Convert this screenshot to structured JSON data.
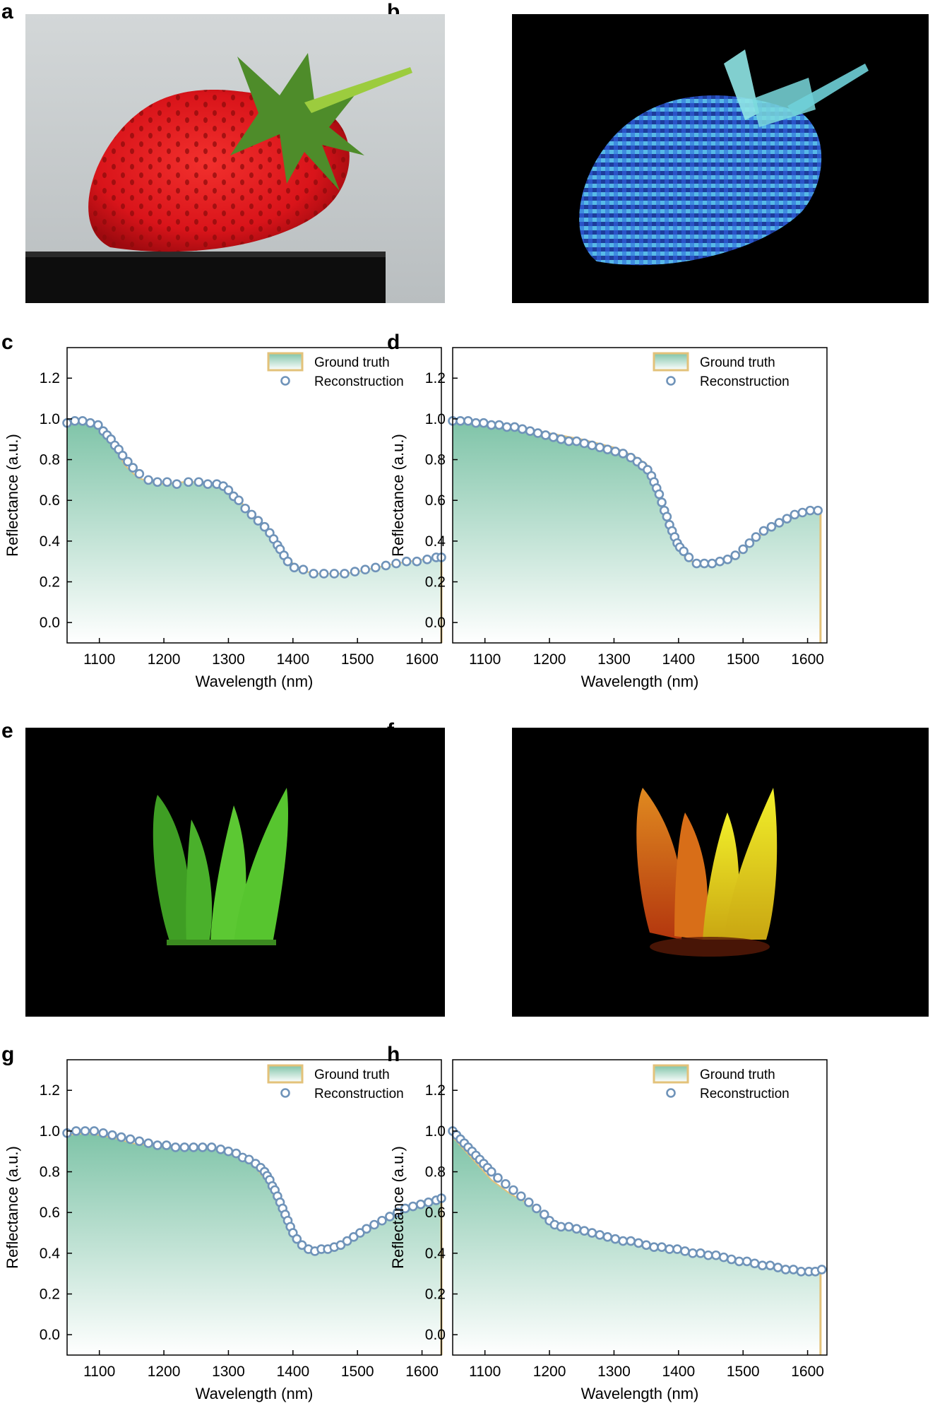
{
  "panels": {
    "a": "a",
    "b": "b",
    "c": "c",
    "d": "d",
    "e": "e",
    "f": "f",
    "g": "g",
    "h": "h"
  },
  "colors": {
    "ground_truth_line": "#e3c27a",
    "fill_top": "#7fc4a8",
    "fill_bottom": "#ffffff",
    "reconstruction_marker": "#6f93b9",
    "photo_background_a": "#c9cdcf",
    "photo_background_dark": "#000000"
  },
  "chart_data": [
    {
      "panel": "c",
      "type": "line",
      "xlabel": "Wavelength (nm)",
      "ylabel": "Reflectance (a.u.)",
      "xlim": [
        1050,
        1630
      ],
      "ylim": [
        -0.1,
        1.35
      ],
      "xticks": [
        1100,
        1200,
        1300,
        1400,
        1500,
        1600
      ],
      "yticks": [
        0.0,
        0.2,
        0.4,
        0.6,
        0.8,
        1.0,
        1.2
      ],
      "xtick_labels": [
        "1100",
        "1200",
        "1300",
        "1400",
        "1500",
        "1600"
      ],
      "ytick_labels": [
        "0.0",
        "0.2",
        "0.4",
        "0.6",
        "0.8",
        "1.0",
        "1.2"
      ],
      "legend": [
        "Ground truth",
        "Reconstruction"
      ],
      "legend_position": "top-right",
      "series": [
        {
          "name": "Ground truth",
          "style": "area",
          "x": [
            1050,
            1060,
            1080,
            1100,
            1120,
            1140,
            1160,
            1180,
            1200,
            1230,
            1260,
            1290,
            1300,
            1320,
            1340,
            1360,
            1380,
            1400,
            1420,
            1440,
            1460,
            1480,
            1500,
            1530,
            1560,
            1600,
            1630
          ],
          "y": [
            0.98,
            0.99,
            0.98,
            0.96,
            0.88,
            0.77,
            0.71,
            0.69,
            0.68,
            0.69,
            0.69,
            0.68,
            0.65,
            0.59,
            0.52,
            0.46,
            0.37,
            0.29,
            0.25,
            0.24,
            0.24,
            0.24,
            0.25,
            0.27,
            0.29,
            0.31,
            0.32
          ]
        },
        {
          "name": "Reconstruction",
          "style": "markers",
          "x": [
            1050,
            1062,
            1074,
            1086,
            1098,
            1106,
            1112,
            1118,
            1124,
            1130,
            1136,
            1144,
            1152,
            1162,
            1176,
            1190,
            1205,
            1220,
            1238,
            1254,
            1268,
            1282,
            1292,
            1300,
            1308,
            1316,
            1326,
            1336,
            1346,
            1356,
            1364,
            1370,
            1376,
            1380,
            1386,
            1392,
            1402,
            1416,
            1432,
            1448,
            1464,
            1480,
            1496,
            1512,
            1528,
            1544,
            1560,
            1576,
            1592,
            1608,
            1622,
            1630
          ],
          "y": [
            0.98,
            0.99,
            0.99,
            0.98,
            0.97,
            0.94,
            0.92,
            0.9,
            0.87,
            0.85,
            0.82,
            0.79,
            0.76,
            0.73,
            0.7,
            0.69,
            0.69,
            0.68,
            0.69,
            0.69,
            0.68,
            0.68,
            0.67,
            0.65,
            0.62,
            0.6,
            0.56,
            0.53,
            0.5,
            0.47,
            0.44,
            0.41,
            0.38,
            0.36,
            0.33,
            0.3,
            0.27,
            0.26,
            0.24,
            0.24,
            0.24,
            0.24,
            0.25,
            0.26,
            0.27,
            0.28,
            0.29,
            0.3,
            0.3,
            0.31,
            0.32,
            0.32
          ]
        }
      ]
    },
    {
      "panel": "d",
      "type": "line",
      "xlabel": "Wavelength (nm)",
      "ylabel": "Reflectance (a.u.)",
      "xlim": [
        1050,
        1630
      ],
      "ylim": [
        -0.1,
        1.35
      ],
      "xticks": [
        1100,
        1200,
        1300,
        1400,
        1500,
        1600
      ],
      "yticks": [
        0.0,
        0.2,
        0.4,
        0.6,
        0.8,
        1.0,
        1.2
      ],
      "xtick_labels": [
        "1100",
        "1200",
        "1300",
        "1400",
        "1500",
        "1600"
      ],
      "ytick_labels": [
        "0.0",
        "0.2",
        "0.4",
        "0.6",
        "0.8",
        "1.0",
        "1.2"
      ],
      "legend": [
        "Ground truth",
        "Reconstruction"
      ],
      "legend_position": "top-right",
      "series": [
        {
          "name": "Ground truth",
          "style": "area",
          "x": [
            1050,
            1100,
            1150,
            1200,
            1250,
            1300,
            1330,
            1350,
            1360,
            1370,
            1380,
            1390,
            1400,
            1410,
            1420,
            1440,
            1460,
            1480,
            1500,
            1520,
            1540,
            1560,
            1580,
            1600,
            1620
          ],
          "y": [
            0.99,
            0.98,
            0.96,
            0.93,
            0.9,
            0.86,
            0.82,
            0.78,
            0.73,
            0.64,
            0.53,
            0.43,
            0.37,
            0.32,
            0.3,
            0.29,
            0.29,
            0.31,
            0.35,
            0.41,
            0.46,
            0.5,
            0.52,
            0.54,
            0.55
          ]
        },
        {
          "name": "Reconstruction",
          "style": "markers",
          "x": [
            1050,
            1062,
            1074,
            1086,
            1098,
            1110,
            1122,
            1134,
            1146,
            1158,
            1170,
            1182,
            1194,
            1206,
            1218,
            1230,
            1242,
            1254,
            1266,
            1278,
            1290,
            1302,
            1314,
            1326,
            1336,
            1344,
            1352,
            1358,
            1362,
            1366,
            1370,
            1374,
            1378,
            1382,
            1386,
            1390,
            1394,
            1398,
            1402,
            1408,
            1416,
            1428,
            1440,
            1452,
            1464,
            1476,
            1488,
            1500,
            1510,
            1520,
            1532,
            1544,
            1556,
            1568,
            1580,
            1592,
            1604,
            1616
          ],
          "y": [
            0.99,
            0.99,
            0.99,
            0.98,
            0.98,
            0.97,
            0.97,
            0.96,
            0.96,
            0.95,
            0.94,
            0.93,
            0.92,
            0.91,
            0.9,
            0.89,
            0.89,
            0.88,
            0.87,
            0.86,
            0.85,
            0.84,
            0.83,
            0.81,
            0.79,
            0.77,
            0.75,
            0.72,
            0.69,
            0.66,
            0.63,
            0.59,
            0.55,
            0.52,
            0.48,
            0.45,
            0.42,
            0.39,
            0.37,
            0.35,
            0.32,
            0.29,
            0.29,
            0.29,
            0.3,
            0.31,
            0.33,
            0.36,
            0.39,
            0.42,
            0.45,
            0.47,
            0.49,
            0.51,
            0.53,
            0.54,
            0.55,
            0.55
          ]
        }
      ]
    },
    {
      "panel": "g",
      "type": "line",
      "xlabel": "Wavelength (nm)",
      "ylabel": "Reflectance (a.u.)",
      "xlim": [
        1050,
        1630
      ],
      "ylim": [
        -0.1,
        1.35
      ],
      "xticks": [
        1100,
        1200,
        1300,
        1400,
        1500,
        1600
      ],
      "yticks": [
        0.0,
        0.2,
        0.4,
        0.6,
        0.8,
        1.0,
        1.2
      ],
      "xtick_labels": [
        "1100",
        "1200",
        "1300",
        "1400",
        "1500",
        "1600"
      ],
      "ytick_labels": [
        "0.0",
        "0.2",
        "0.4",
        "0.6",
        "0.8",
        "1.0",
        "1.2"
      ],
      "legend": [
        "Ground truth",
        "Reconstruction"
      ],
      "legend_position": "top-right",
      "series": [
        {
          "name": "Ground truth",
          "style": "area",
          "x": [
            1050,
            1080,
            1100,
            1130,
            1150,
            1180,
            1200,
            1240,
            1280,
            1300,
            1320,
            1340,
            1360,
            1380,
            1400,
            1420,
            1440,
            1460,
            1480,
            1500,
            1530,
            1560,
            1600,
            1630
          ],
          "y": [
            0.98,
            0.99,
            0.98,
            0.96,
            0.94,
            0.93,
            0.92,
            0.92,
            0.91,
            0.9,
            0.87,
            0.83,
            0.75,
            0.62,
            0.48,
            0.42,
            0.41,
            0.41,
            0.44,
            0.48,
            0.54,
            0.59,
            0.64,
            0.67
          ]
        },
        {
          "name": "Reconstruction",
          "style": "markers",
          "x": [
            1050,
            1064,
            1078,
            1092,
            1106,
            1120,
            1134,
            1148,
            1162,
            1176,
            1190,
            1204,
            1218,
            1232,
            1246,
            1260,
            1274,
            1288,
            1300,
            1312,
            1322,
            1332,
            1342,
            1350,
            1356,
            1360,
            1364,
            1368,
            1372,
            1376,
            1380,
            1384,
            1388,
            1392,
            1396,
            1400,
            1406,
            1414,
            1424,
            1434,
            1444,
            1454,
            1464,
            1474,
            1484,
            1494,
            1504,
            1514,
            1526,
            1538,
            1550,
            1562,
            1574,
            1586,
            1598,
            1610,
            1622,
            1630
          ],
          "y": [
            0.99,
            1.0,
            1.0,
            1.0,
            0.99,
            0.98,
            0.97,
            0.96,
            0.95,
            0.94,
            0.93,
            0.93,
            0.92,
            0.92,
            0.92,
            0.92,
            0.92,
            0.91,
            0.9,
            0.89,
            0.87,
            0.86,
            0.84,
            0.82,
            0.8,
            0.78,
            0.76,
            0.73,
            0.71,
            0.68,
            0.65,
            0.62,
            0.59,
            0.56,
            0.53,
            0.5,
            0.47,
            0.44,
            0.42,
            0.41,
            0.42,
            0.42,
            0.43,
            0.44,
            0.46,
            0.48,
            0.5,
            0.52,
            0.54,
            0.56,
            0.58,
            0.6,
            0.62,
            0.63,
            0.64,
            0.65,
            0.66,
            0.67
          ]
        }
      ]
    },
    {
      "panel": "h",
      "type": "line",
      "xlabel": "Wavelength (nm)",
      "ylabel": "Reflectance (a.u.)",
      "xlim": [
        1050,
        1630
      ],
      "ylim": [
        -0.1,
        1.35
      ],
      "xticks": [
        1100,
        1200,
        1300,
        1400,
        1500,
        1600
      ],
      "yticks": [
        0.0,
        0.2,
        0.4,
        0.6,
        0.8,
        1.0,
        1.2
      ],
      "xtick_labels": [
        "1100",
        "1200",
        "1300",
        "1400",
        "1500",
        "1600"
      ],
      "ytick_labels": [
        "0.0",
        "0.2",
        "0.4",
        "0.6",
        "0.8",
        "1.0",
        "1.2"
      ],
      "legend": [
        "Ground truth",
        "Reconstruction"
      ],
      "legend_position": "top-right",
      "series": [
        {
          "name": "Ground truth",
          "style": "area",
          "x": [
            1050,
            1070,
            1090,
            1110,
            1140,
            1170,
            1200,
            1220,
            1250,
            1300,
            1350,
            1400,
            1450,
            1500,
            1550,
            1600,
            1620
          ],
          "y": [
            0.97,
            0.9,
            0.83,
            0.76,
            0.69,
            0.64,
            0.57,
            0.52,
            0.51,
            0.47,
            0.44,
            0.42,
            0.39,
            0.36,
            0.33,
            0.3,
            0.3
          ]
        },
        {
          "name": "Reconstruction",
          "style": "markers",
          "x": [
            1050,
            1056,
            1062,
            1068,
            1074,
            1080,
            1086,
            1092,
            1098,
            1104,
            1110,
            1120,
            1132,
            1144,
            1156,
            1168,
            1180,
            1192,
            1200,
            1208,
            1218,
            1230,
            1242,
            1254,
            1266,
            1278,
            1290,
            1302,
            1314,
            1326,
            1338,
            1350,
            1362,
            1374,
            1386,
            1398,
            1410,
            1422,
            1434,
            1446,
            1458,
            1470,
            1482,
            1494,
            1506,
            1518,
            1530,
            1542,
            1554,
            1566,
            1578,
            1590,
            1602,
            1612,
            1622
          ],
          "y": [
            1.0,
            0.98,
            0.96,
            0.94,
            0.92,
            0.9,
            0.88,
            0.86,
            0.84,
            0.82,
            0.8,
            0.77,
            0.74,
            0.71,
            0.68,
            0.65,
            0.62,
            0.59,
            0.56,
            0.54,
            0.53,
            0.53,
            0.52,
            0.51,
            0.5,
            0.49,
            0.48,
            0.47,
            0.46,
            0.46,
            0.45,
            0.44,
            0.43,
            0.43,
            0.42,
            0.42,
            0.41,
            0.4,
            0.4,
            0.39,
            0.39,
            0.38,
            0.37,
            0.36,
            0.36,
            0.35,
            0.34,
            0.34,
            0.33,
            0.32,
            0.32,
            0.31,
            0.31,
            0.31,
            0.32
          ]
        }
      ]
    }
  ]
}
